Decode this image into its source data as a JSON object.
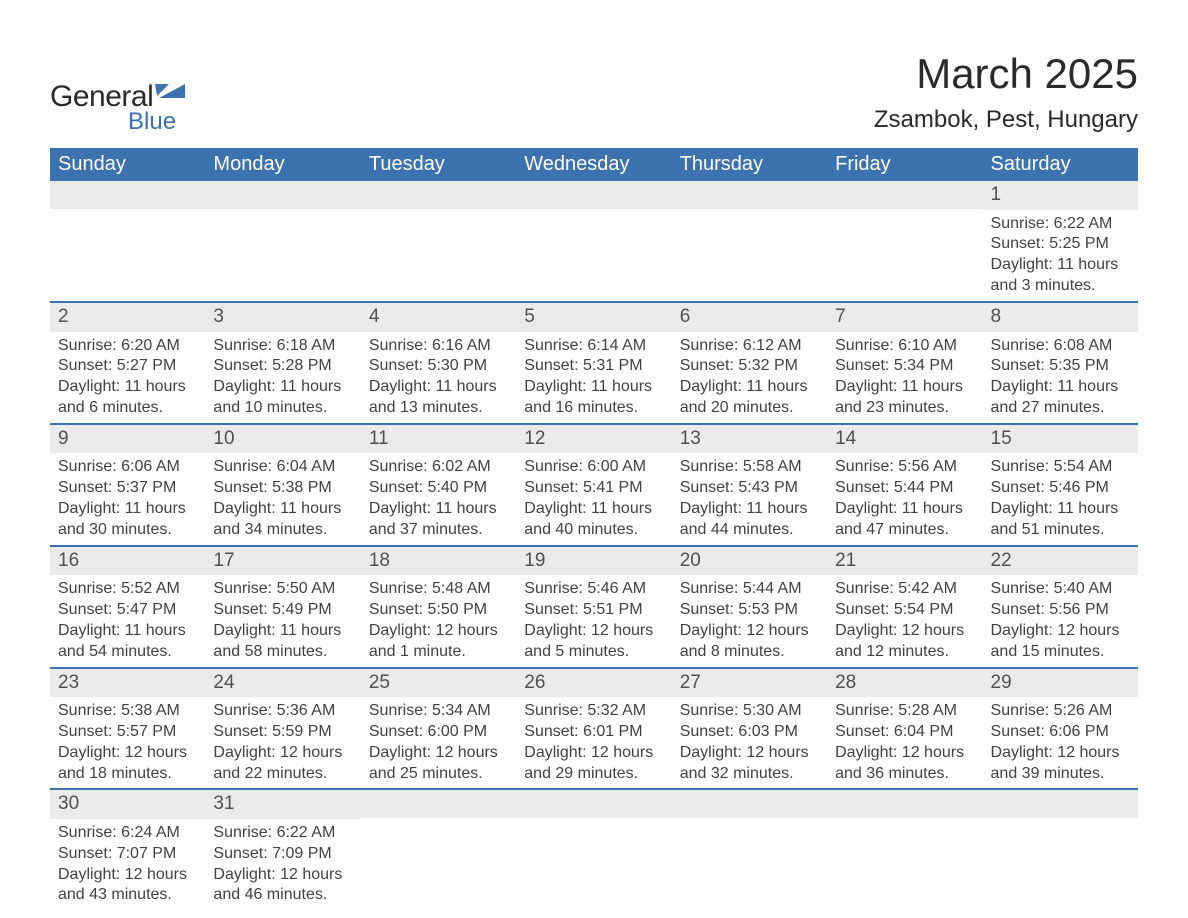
{
  "logo": {
    "text1": "General",
    "text2": "Blue",
    "icon_color": "#3d72b0"
  },
  "title": "March 2025",
  "location": "Zsambok, Pest, Hungary",
  "colors": {
    "header_bg": "#3d72b0",
    "header_fg": "#ffffff",
    "daynum_bg": "#ebebeb",
    "row_border": "#3d72b0",
    "text": "#424242",
    "background": "#ffffff"
  },
  "typography": {
    "title_fontsize": 42,
    "location_fontsize": 24,
    "dayheader_fontsize": 20,
    "daynum_fontsize": 19,
    "body_fontsize": 16,
    "font_family": "Arial"
  },
  "layout": {
    "columns": 7,
    "rows": 6,
    "first_day_column_index": 6
  },
  "day_headers": [
    "Sunday",
    "Monday",
    "Tuesday",
    "Wednesday",
    "Thursday",
    "Friday",
    "Saturday"
  ],
  "weeks": [
    [
      null,
      null,
      null,
      null,
      null,
      null,
      {
        "n": "1",
        "sunrise": "6:22 AM",
        "sunset": "5:25 PM",
        "daylight": "11 hours and 3 minutes."
      }
    ],
    [
      {
        "n": "2",
        "sunrise": "6:20 AM",
        "sunset": "5:27 PM",
        "daylight": "11 hours and 6 minutes."
      },
      {
        "n": "3",
        "sunrise": "6:18 AM",
        "sunset": "5:28 PM",
        "daylight": "11 hours and 10 minutes."
      },
      {
        "n": "4",
        "sunrise": "6:16 AM",
        "sunset": "5:30 PM",
        "daylight": "11 hours and 13 minutes."
      },
      {
        "n": "5",
        "sunrise": "6:14 AM",
        "sunset": "5:31 PM",
        "daylight": "11 hours and 16 minutes."
      },
      {
        "n": "6",
        "sunrise": "6:12 AM",
        "sunset": "5:32 PM",
        "daylight": "11 hours and 20 minutes."
      },
      {
        "n": "7",
        "sunrise": "6:10 AM",
        "sunset": "5:34 PM",
        "daylight": "11 hours and 23 minutes."
      },
      {
        "n": "8",
        "sunrise": "6:08 AM",
        "sunset": "5:35 PM",
        "daylight": "11 hours and 27 minutes."
      }
    ],
    [
      {
        "n": "9",
        "sunrise": "6:06 AM",
        "sunset": "5:37 PM",
        "daylight": "11 hours and 30 minutes."
      },
      {
        "n": "10",
        "sunrise": "6:04 AM",
        "sunset": "5:38 PM",
        "daylight": "11 hours and 34 minutes."
      },
      {
        "n": "11",
        "sunrise": "6:02 AM",
        "sunset": "5:40 PM",
        "daylight": "11 hours and 37 minutes."
      },
      {
        "n": "12",
        "sunrise": "6:00 AM",
        "sunset": "5:41 PM",
        "daylight": "11 hours and 40 minutes."
      },
      {
        "n": "13",
        "sunrise": "5:58 AM",
        "sunset": "5:43 PM",
        "daylight": "11 hours and 44 minutes."
      },
      {
        "n": "14",
        "sunrise": "5:56 AM",
        "sunset": "5:44 PM",
        "daylight": "11 hours and 47 minutes."
      },
      {
        "n": "15",
        "sunrise": "5:54 AM",
        "sunset": "5:46 PM",
        "daylight": "11 hours and 51 minutes."
      }
    ],
    [
      {
        "n": "16",
        "sunrise": "5:52 AM",
        "sunset": "5:47 PM",
        "daylight": "11 hours and 54 minutes."
      },
      {
        "n": "17",
        "sunrise": "5:50 AM",
        "sunset": "5:49 PM",
        "daylight": "11 hours and 58 minutes."
      },
      {
        "n": "18",
        "sunrise": "5:48 AM",
        "sunset": "5:50 PM",
        "daylight": "12 hours and 1 minute."
      },
      {
        "n": "19",
        "sunrise": "5:46 AM",
        "sunset": "5:51 PM",
        "daylight": "12 hours and 5 minutes."
      },
      {
        "n": "20",
        "sunrise": "5:44 AM",
        "sunset": "5:53 PM",
        "daylight": "12 hours and 8 minutes."
      },
      {
        "n": "21",
        "sunrise": "5:42 AM",
        "sunset": "5:54 PM",
        "daylight": "12 hours and 12 minutes."
      },
      {
        "n": "22",
        "sunrise": "5:40 AM",
        "sunset": "5:56 PM",
        "daylight": "12 hours and 15 minutes."
      }
    ],
    [
      {
        "n": "23",
        "sunrise": "5:38 AM",
        "sunset": "5:57 PM",
        "daylight": "12 hours and 18 minutes."
      },
      {
        "n": "24",
        "sunrise": "5:36 AM",
        "sunset": "5:59 PM",
        "daylight": "12 hours and 22 minutes."
      },
      {
        "n": "25",
        "sunrise": "5:34 AM",
        "sunset": "6:00 PM",
        "daylight": "12 hours and 25 minutes."
      },
      {
        "n": "26",
        "sunrise": "5:32 AM",
        "sunset": "6:01 PM",
        "daylight": "12 hours and 29 minutes."
      },
      {
        "n": "27",
        "sunrise": "5:30 AM",
        "sunset": "6:03 PM",
        "daylight": "12 hours and 32 minutes."
      },
      {
        "n": "28",
        "sunrise": "5:28 AM",
        "sunset": "6:04 PM",
        "daylight": "12 hours and 36 minutes."
      },
      {
        "n": "29",
        "sunrise": "5:26 AM",
        "sunset": "6:06 PM",
        "daylight": "12 hours and 39 minutes."
      }
    ],
    [
      {
        "n": "30",
        "sunrise": "6:24 AM",
        "sunset": "7:07 PM",
        "daylight": "12 hours and 43 minutes."
      },
      {
        "n": "31",
        "sunrise": "6:22 AM",
        "sunset": "7:09 PM",
        "daylight": "12 hours and 46 minutes."
      },
      null,
      null,
      null,
      null,
      null
    ]
  ],
  "labels": {
    "sunrise": "Sunrise: ",
    "sunset": "Sunset: ",
    "daylight": "Daylight: "
  }
}
